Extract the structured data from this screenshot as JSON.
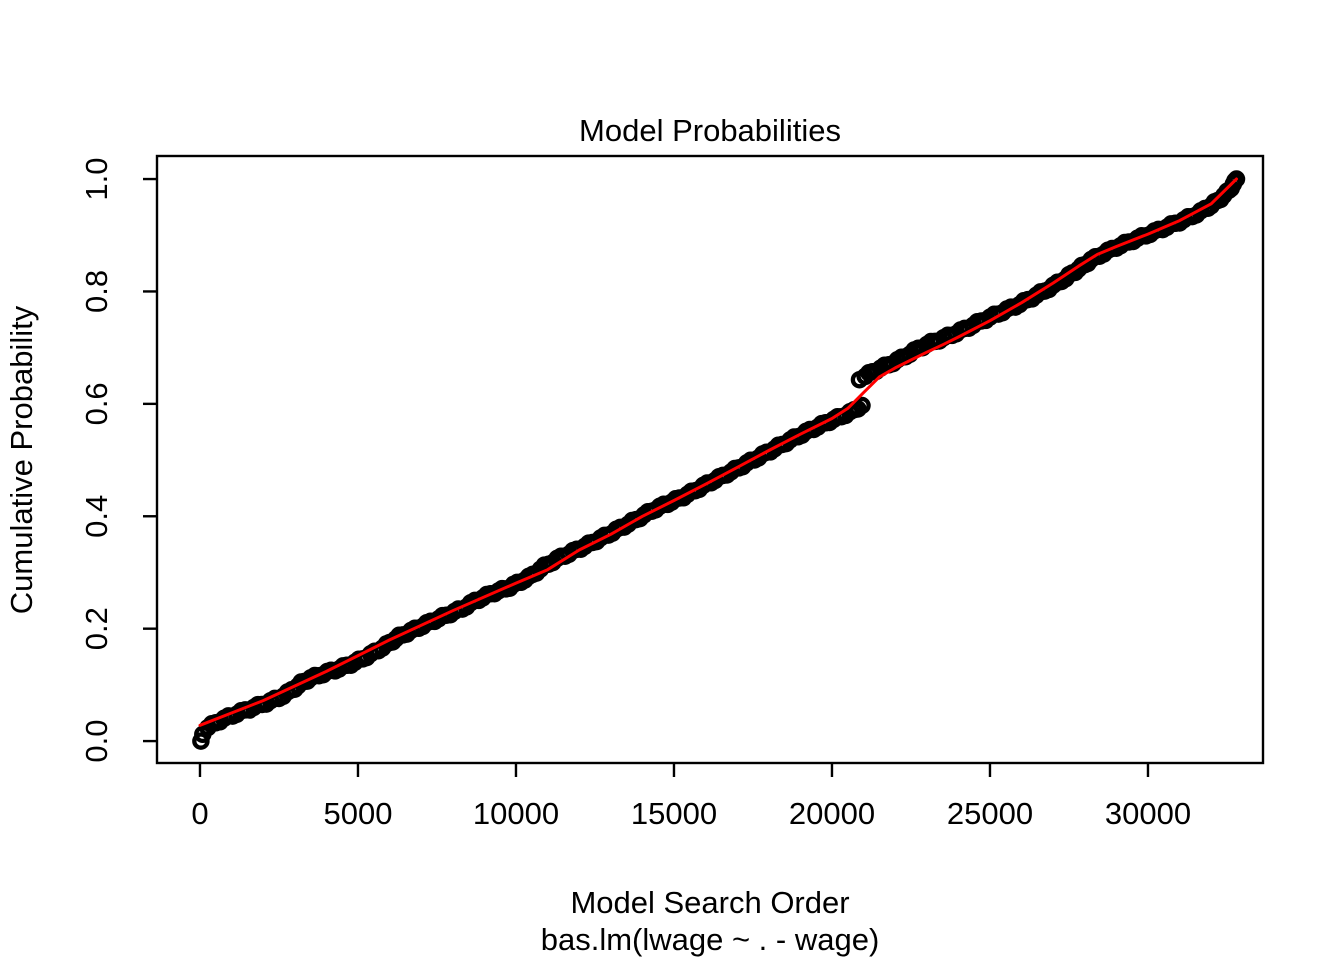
{
  "title": "Model Probabilities",
  "xlabel": "Model Search Order",
  "sub_xlabel": "bas.lm(lwage ~ . - wage)",
  "ylabel": "Cumulative Probability",
  "colors": {
    "points": "#000000",
    "fit_line": "#FF0000",
    "axis": "#000000",
    "background": "#FFFFFF"
  },
  "chart_data": {
    "type": "scatter",
    "title": "Model Probabilities",
    "xlabel": "Model Search Order",
    "sub_xlabel": "bas.lm(lwage ~ . - wage)",
    "ylabel": "Cumulative Probability",
    "grid": false,
    "legend": "none",
    "xlim": [
      -1360,
      33640
    ],
    "ylim": [
      -0.039,
      1.041
    ],
    "x_tick_values": [
      0,
      5000,
      10000,
      15000,
      20000,
      25000,
      30000
    ],
    "x_tick_labels": [
      "0",
      "5000",
      "10000",
      "15000",
      "20000",
      "25000",
      "30000"
    ],
    "y_tick_values": [
      0.0,
      0.2,
      0.4,
      0.6,
      0.8,
      1.0
    ],
    "y_tick_labels": [
      "0.0",
      "0.2",
      "0.4",
      "0.6",
      "0.8",
      "1.0"
    ],
    "series": [
      {
        "name": "cumulative model probability (sampled models, open circles)",
        "type": "scatter",
        "marker": "open-circle",
        "color": "#000000",
        "segments": [
          [
            [
              250,
              0.024
            ],
            [
              500,
              0.033
            ],
            [
              900,
              0.043
            ],
            [
              1300,
              0.052
            ],
            [
              1700,
              0.06
            ],
            [
              2100,
              0.068
            ],
            [
              2500,
              0.077
            ],
            [
              2900,
              0.09
            ],
            [
              3200,
              0.103
            ],
            [
              3500,
              0.112
            ],
            [
              3900,
              0.12
            ],
            [
              4400,
              0.129
            ],
            [
              4900,
              0.14
            ],
            [
              5400,
              0.154
            ],
            [
              5900,
              0.171
            ],
            [
              6300,
              0.186
            ],
            [
              6800,
              0.199
            ],
            [
              7300,
              0.212
            ],
            [
              7800,
              0.224
            ],
            [
              8300,
              0.236
            ],
            [
              8700,
              0.249
            ],
            [
              9200,
              0.262
            ],
            [
              9800,
              0.274
            ],
            [
              10400,
              0.291
            ],
            [
              10900,
              0.311
            ],
            [
              11300,
              0.324
            ],
            [
              11800,
              0.337
            ],
            [
              12300,
              0.35
            ],
            [
              12800,
              0.364
            ],
            [
              13300,
              0.379
            ],
            [
              13800,
              0.394
            ],
            [
              14300,
              0.41
            ],
            [
              14800,
              0.423
            ],
            [
              15300,
              0.435
            ],
            [
              15800,
              0.45
            ],
            [
              16300,
              0.465
            ],
            [
              16800,
              0.479
            ],
            [
              17300,
              0.494
            ],
            [
              17800,
              0.509
            ],
            [
              18300,
              0.524
            ],
            [
              18800,
              0.539
            ],
            [
              19300,
              0.553
            ],
            [
              19800,
              0.566
            ],
            [
              20300,
              0.578
            ],
            [
              20700,
              0.588
            ],
            [
              20950,
              0.597
            ]
          ],
          [
            [
              21050,
              0.65
            ],
            [
              21400,
              0.66
            ],
            [
              21800,
              0.67
            ],
            [
              22200,
              0.681
            ],
            [
              22600,
              0.694
            ],
            [
              23000,
              0.706
            ],
            [
              23400,
              0.714
            ],
            [
              23800,
              0.723
            ],
            [
              24200,
              0.733
            ],
            [
              24600,
              0.744
            ],
            [
              25000,
              0.754
            ],
            [
              25400,
              0.764
            ],
            [
              25800,
              0.774
            ],
            [
              26200,
              0.785
            ],
            [
              26600,
              0.797
            ],
            [
              27000,
              0.81
            ],
            [
              27400,
              0.824
            ],
            [
              27800,
              0.84
            ],
            [
              28200,
              0.856
            ],
            [
              28600,
              0.868
            ],
            [
              29000,
              0.879
            ],
            [
              29400,
              0.888
            ],
            [
              29800,
              0.897
            ],
            [
              30200,
              0.906
            ],
            [
              30600,
              0.915
            ],
            [
              31000,
              0.924
            ],
            [
              31400,
              0.934
            ],
            [
              31800,
              0.946
            ],
            [
              32200,
              0.961
            ],
            [
              32500,
              0.976
            ],
            [
              32700,
              0.99
            ],
            [
              32800,
              1.0
            ]
          ]
        ],
        "isolated_points": [
          [
            30,
            0.0
          ],
          [
            90,
            0.012
          ],
          [
            20870,
            0.643
          ]
        ]
      },
      {
        "name": "fitted cumulative probability line",
        "type": "line",
        "color": "#FF0000",
        "points": [
          [
            0,
            0.028
          ],
          [
            2000,
            0.072
          ],
          [
            4000,
            0.124
          ],
          [
            6000,
            0.18
          ],
          [
            8000,
            0.232
          ],
          [
            10000,
            0.281
          ],
          [
            11000,
            0.305
          ],
          [
            12000,
            0.34
          ],
          [
            13000,
            0.368
          ],
          [
            14000,
            0.4
          ],
          [
            15000,
            0.428
          ],
          [
            16000,
            0.457
          ],
          [
            17000,
            0.487
          ],
          [
            18000,
            0.517
          ],
          [
            19000,
            0.546
          ],
          [
            20000,
            0.574
          ],
          [
            20500,
            0.592
          ],
          [
            21000,
            0.62
          ],
          [
            21500,
            0.648
          ],
          [
            22000,
            0.664
          ],
          [
            22500,
            0.678
          ],
          [
            23000,
            0.692
          ],
          [
            23500,
            0.705
          ],
          [
            24000,
            0.719
          ],
          [
            25000,
            0.748
          ],
          [
            26000,
            0.78
          ],
          [
            27000,
            0.815
          ],
          [
            27800,
            0.845
          ],
          [
            28400,
            0.866
          ],
          [
            29000,
            0.88
          ],
          [
            30000,
            0.902
          ],
          [
            31000,
            0.926
          ],
          [
            32000,
            0.956
          ],
          [
            32800,
            1.0
          ]
        ]
      }
    ]
  }
}
